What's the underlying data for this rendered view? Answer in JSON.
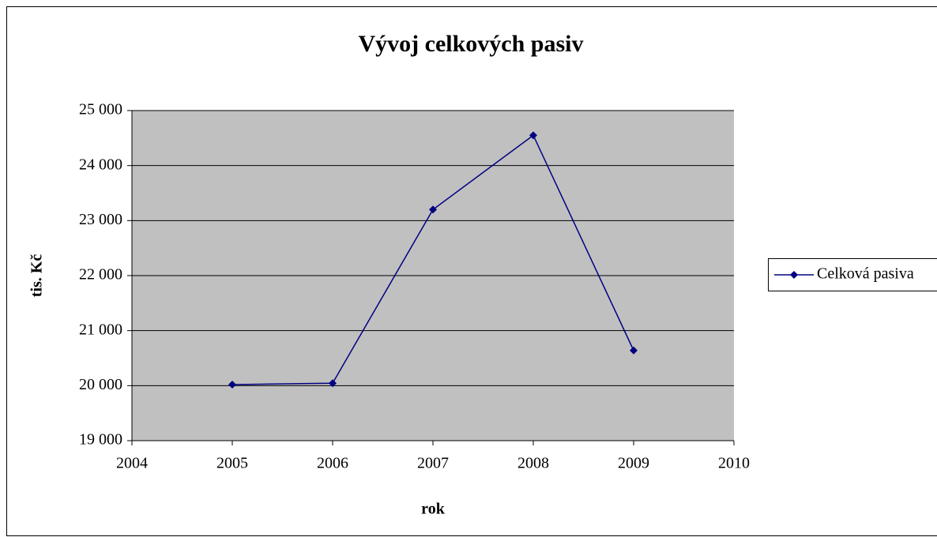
{
  "chart_data": {
    "type": "line",
    "title": "Vývoj celkových pasiv",
    "x_label": "rok",
    "y_label": "tis. Kč",
    "x": [
      2005,
      2006,
      2007,
      2008,
      2009
    ],
    "series": [
      {
        "name": "Celková pasiva",
        "color": "#000080",
        "values": [
          20020,
          20045,
          23200,
          24550,
          20640
        ]
      }
    ],
    "xlim": [
      2004,
      2010
    ],
    "xticks": [
      2004,
      2005,
      2006,
      2007,
      2008,
      2009,
      2010
    ],
    "ylim": [
      19000,
      25000
    ],
    "yticks": [
      {
        "value": 19000,
        "label": "19 000"
      },
      {
        "value": 20000,
        "label": "20 000"
      },
      {
        "value": 21000,
        "label": "21 000"
      },
      {
        "value": 22000,
        "label": "22 000"
      },
      {
        "value": 23000,
        "label": "23 000"
      },
      {
        "value": 24000,
        "label": "24 000"
      },
      {
        "value": 25000,
        "label": "25 000"
      }
    ],
    "grid": true,
    "legend": "right"
  }
}
